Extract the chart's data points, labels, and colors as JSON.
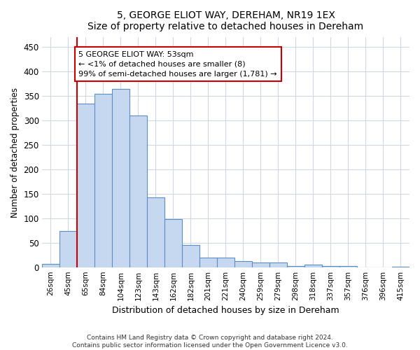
{
  "title1": "5, GEORGE ELIOT WAY, DEREHAM, NR19 1EX",
  "title2": "Size of property relative to detached houses in Dereham",
  "xlabel": "Distribution of detached houses by size in Dereham",
  "ylabel": "Number of detached properties",
  "categories": [
    "26sqm",
    "45sqm",
    "65sqm",
    "84sqm",
    "104sqm",
    "123sqm",
    "143sqm",
    "162sqm",
    "182sqm",
    "201sqm",
    "221sqm",
    "240sqm",
    "259sqm",
    "279sqm",
    "298sqm",
    "318sqm",
    "337sqm",
    "357sqm",
    "376sqm",
    "396sqm",
    "415sqm"
  ],
  "values": [
    7,
    75,
    335,
    355,
    365,
    310,
    143,
    99,
    46,
    20,
    20,
    13,
    10,
    10,
    4,
    6,
    4,
    4,
    1,
    0,
    2
  ],
  "bar_color": "#c5d8f0",
  "bar_edge_color": "#5b8ec4",
  "vline_x": 1.5,
  "vline_color": "#cc0000",
  "annotation_text": "5 GEORGE ELIOT WAY: 53sqm\n← <1% of detached houses are smaller (8)\n99% of semi-detached houses are larger (1,781) →",
  "annotation_box_color": "#ffffff",
  "annotation_box_edge": "#cc0000",
  "ylim": [
    0,
    470
  ],
  "yticks": [
    0,
    50,
    100,
    150,
    200,
    250,
    300,
    350,
    400,
    450
  ],
  "footer1": "Contains HM Land Registry data © Crown copyright and database right 2024.",
  "footer2": "Contains public sector information licensed under the Open Government Licence v3.0.",
  "bg_color": "#ffffff",
  "plot_bg_color": "#ffffff",
  "grid_color": "#d0d8e8"
}
